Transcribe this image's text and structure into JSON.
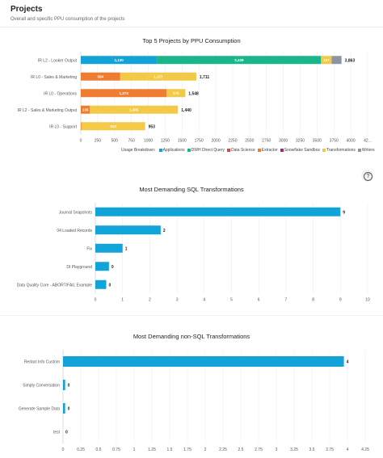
{
  "page": {
    "title": "Projects",
    "subtitle": "Overall and specific PPU consumption of the projects"
  },
  "chart_data": [
    {
      "type": "bar",
      "orientation": "horizontal",
      "stacked": true,
      "title": "Top 5 Projects by PPU Consumption",
      "categories": [
        "IR L2 - Looker Output",
        "IR L0 - Sales & Marketing",
        "IR L0 - Operations",
        "IR L2 - Sales & Marketing Output",
        "IR L0 - Support"
      ],
      "series": [
        {
          "name": "Applications",
          "color": "#12a3d8",
          "values": [
            1130,
            0,
            0,
            0,
            0
          ]
        },
        {
          "name": "DWH Direct Query",
          "color": "#1ab589",
          "values": [
            2429,
            0,
            0,
            0,
            0
          ]
        },
        {
          "name": "Data Science",
          "color": "#e0453c",
          "values": [
            0,
            0,
            0,
            0,
            0
          ]
        },
        {
          "name": "Extractor",
          "color": "#ee7d32",
          "values": [
            0,
            584,
            1273,
            135,
            10
          ]
        },
        {
          "name": "Snowflake Sandbox",
          "color": "#9c2a78",
          "values": [
            0,
            0,
            0,
            0,
            0
          ]
        },
        {
          "name": "Transformations",
          "color": "#f4c947",
          "values": [
            157,
            1127,
            275,
            1305,
            943
          ]
        },
        {
          "name": "Writers",
          "color": "#8c95a2",
          "values": [
            147,
            0,
            0,
            0,
            0
          ]
        }
      ],
      "bar_labels": [
        [
          "1,130",
          "2,429",
          "",
          "",
          "",
          "157",
          ""
        ],
        [
          "",
          "",
          "",
          "584",
          "",
          "1,127",
          ""
        ],
        [
          "",
          "",
          "",
          "1,273",
          "",
          "275",
          ""
        ],
        [
          "",
          "",
          "",
          "135",
          "",
          "1,305",
          ""
        ],
        [
          "",
          "",
          "",
          "",
          "",
          "943",
          ""
        ]
      ],
      "totals": [
        "3,863",
        "1,711",
        "1,548",
        "1,440",
        "953"
      ],
      "x_ticks": [
        "0",
        "250",
        "500",
        "750",
        "1000",
        "1250",
        "1500",
        "1750",
        "2000",
        "2250",
        "2500",
        "2750",
        "3000",
        "3250",
        "3500",
        "3750",
        "4000",
        "42..."
      ],
      "xlim": [
        0,
        4250
      ],
      "grid": true,
      "legend_title": "Usage Breakdown:",
      "legend_position": "bottom"
    },
    {
      "type": "bar",
      "orientation": "horizontal",
      "title": "Most Demanding SQL Transformations",
      "color": "#12a3d8",
      "categories": [
        "Journal Snapshots",
        "04 Loaded Records",
        "Fix",
        "DI Playground",
        "Data Quality Core - ABORT/FAIL Example"
      ],
      "values": [
        9,
        2.4,
        1,
        0.5,
        0.4
      ],
      "value_labels": [
        "9",
        "2",
        "1",
        "0",
        "0"
      ],
      "x_ticks": [
        "0",
        "1",
        "2",
        "3",
        "4",
        "5",
        "6",
        "7",
        "8",
        "9",
        "10"
      ],
      "xlim": [
        0,
        10
      ],
      "grid": true
    },
    {
      "type": "bar",
      "orientation": "horizontal",
      "title": "Most Demanding non-SQL Transformations",
      "color": "#12a3d8",
      "categories": [
        "Redact Info Custom",
        "Simply Conversation",
        "Generate Sample Data",
        "test"
      ],
      "values": [
        3.95,
        0.03,
        0.03,
        0
      ],
      "value_labels": [
        "4",
        "0",
        "0",
        "0"
      ],
      "x_ticks": [
        "0",
        "0.25",
        "0.5",
        "0.75",
        "1",
        "1.25",
        "1.5",
        "1.75",
        "2",
        "2.25",
        "2.5",
        "2.75",
        "3",
        "3.25",
        "3.5",
        "3.75",
        "4",
        "4.25"
      ],
      "xlim": [
        0,
        4.25
      ],
      "grid": true
    }
  ],
  "help_icon": "question-circle-icon"
}
